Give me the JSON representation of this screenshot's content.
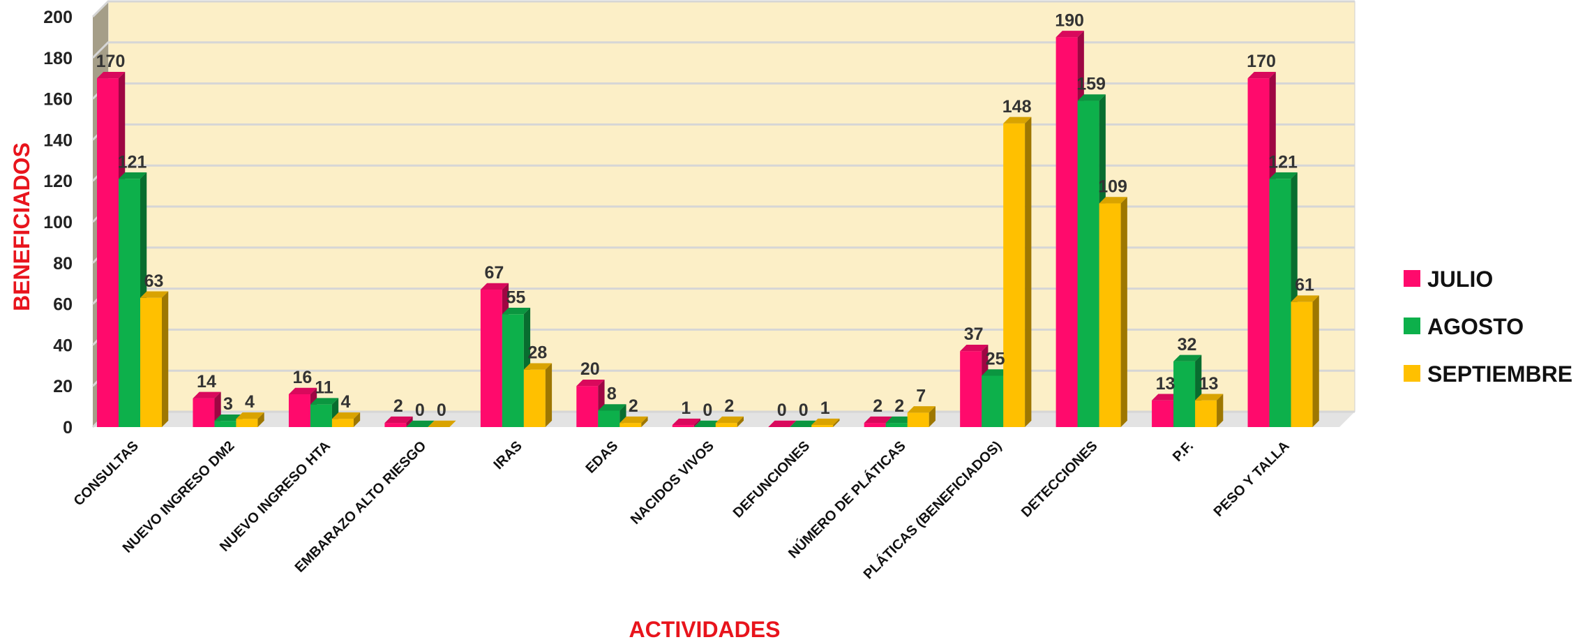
{
  "chart_data": {
    "type": "bar",
    "title": "",
    "xlabel": "ACTIVIDADES",
    "ylabel": "BENEFICIADOS",
    "ylim": [
      0,
      200
    ],
    "yticks": [
      0,
      20,
      40,
      60,
      80,
      100,
      120,
      140,
      160,
      180,
      200
    ],
    "grid": true,
    "legend_position": "right",
    "categories": [
      "CONSULTAS",
      "NUEVO INGRESO DM2",
      "NUEVO INGRESO HTA",
      "EMBARAZO ALTO RIESGO",
      "IRAS",
      "EDAS",
      "NACIDOS VIVOS",
      "DEFUNCIONES",
      "NÚMERO DE PLÁTICAS",
      "PLÁTICAS (BENEFICIADOS)",
      "DETECCIONES",
      "P.F.",
      "PESO Y TALLA"
    ],
    "series": [
      {
        "name": "JULIO",
        "color": "#ff0a6c",
        "values": [
          170,
          14,
          16,
          2,
          67,
          20,
          1,
          0,
          2,
          37,
          190,
          13,
          170
        ]
      },
      {
        "name": "AGOSTO",
        "color": "#0db04b",
        "values": [
          121,
          3,
          11,
          0,
          55,
          8,
          0,
          0,
          2,
          25,
          159,
          32,
          121
        ]
      },
      {
        "name": "SEPTIEMBRE",
        "color": "#ffc000",
        "values": [
          63,
          4,
          4,
          0,
          28,
          2,
          2,
          1,
          7,
          148,
          109,
          13,
          61
        ]
      }
    ]
  }
}
